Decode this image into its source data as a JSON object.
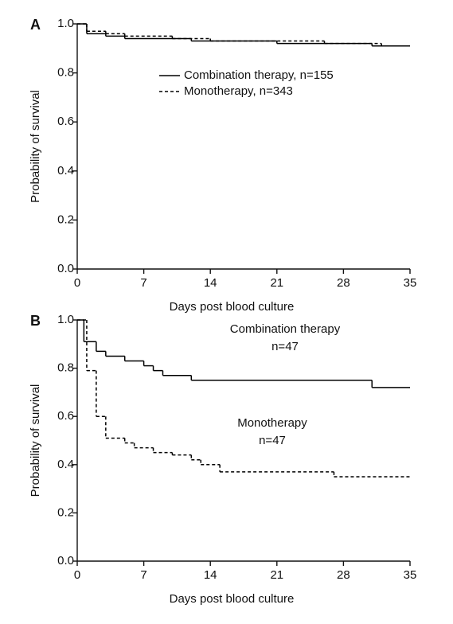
{
  "chart_data": [
    {
      "type": "line",
      "step": true,
      "panel": "A",
      "xlabel": "Days post blood culture",
      "ylabel": "Probability of survival",
      "xlim": [
        0,
        35
      ],
      "ylim": [
        0,
        1
      ],
      "xticks": [
        0,
        7,
        14,
        21,
        28,
        35
      ],
      "yticks": [
        {
          "value": 0,
          "label": "0.0"
        },
        0.2,
        0.4,
        0.6,
        0.8,
        {
          "value": 1,
          "label": "1.0"
        }
      ],
      "grid": false,
      "legend": "top-center",
      "series": [
        {
          "name": "Combination therapy,  n=155",
          "color": "#000000",
          "dash": false,
          "x": [
            0,
            1,
            3,
            5,
            12,
            21,
            31
          ],
          "values": [
            1,
            0.96,
            0.95,
            0.94,
            0.93,
            0.92,
            0.91
          ]
        },
        {
          "name": "Monotherapy, n=343",
          "color": "#000000",
          "dash": true,
          "x": [
            0,
            1,
            3,
            5,
            10,
            14,
            26,
            32
          ],
          "values": [
            1,
            0.97,
            0.96,
            0.95,
            0.94,
            0.93,
            0.92,
            0.91
          ]
        }
      ]
    },
    {
      "type": "line",
      "step": true,
      "panel": "B",
      "xlabel": "Days post blood culture",
      "ylabel": "Probability of survival",
      "xlim": [
        0,
        35
      ],
      "ylim": [
        0,
        1
      ],
      "xticks": [
        0,
        7,
        14,
        21,
        28,
        35
      ],
      "yticks": [
        {
          "value": 0,
          "label": "0.0"
        },
        0.2,
        0.4,
        0.6,
        0.8,
        {
          "value": 1,
          "label": "1.0"
        }
      ],
      "grid": false,
      "legend": "inline",
      "series": [
        {
          "name": "Combination therapy",
          "note": "n=47",
          "color": "#000000",
          "dash": false,
          "x": [
            0,
            0.7,
            2,
            3,
            5,
            7,
            8,
            9,
            12,
            31
          ],
          "values": [
            1,
            0.91,
            0.87,
            0.85,
            0.83,
            0.81,
            0.79,
            0.77,
            0.75,
            0.72
          ]
        },
        {
          "name": "Monotherapy",
          "note": "n=47",
          "color": "#000000",
          "dash": true,
          "x": [
            0,
            1,
            2,
            3,
            5,
            6,
            8,
            10,
            12,
            13,
            15,
            27
          ],
          "values": [
            1,
            0.79,
            0.6,
            0.51,
            0.49,
            0.47,
            0.45,
            0.44,
            0.42,
            0.4,
            0.37,
            0.35
          ]
        }
      ]
    }
  ]
}
